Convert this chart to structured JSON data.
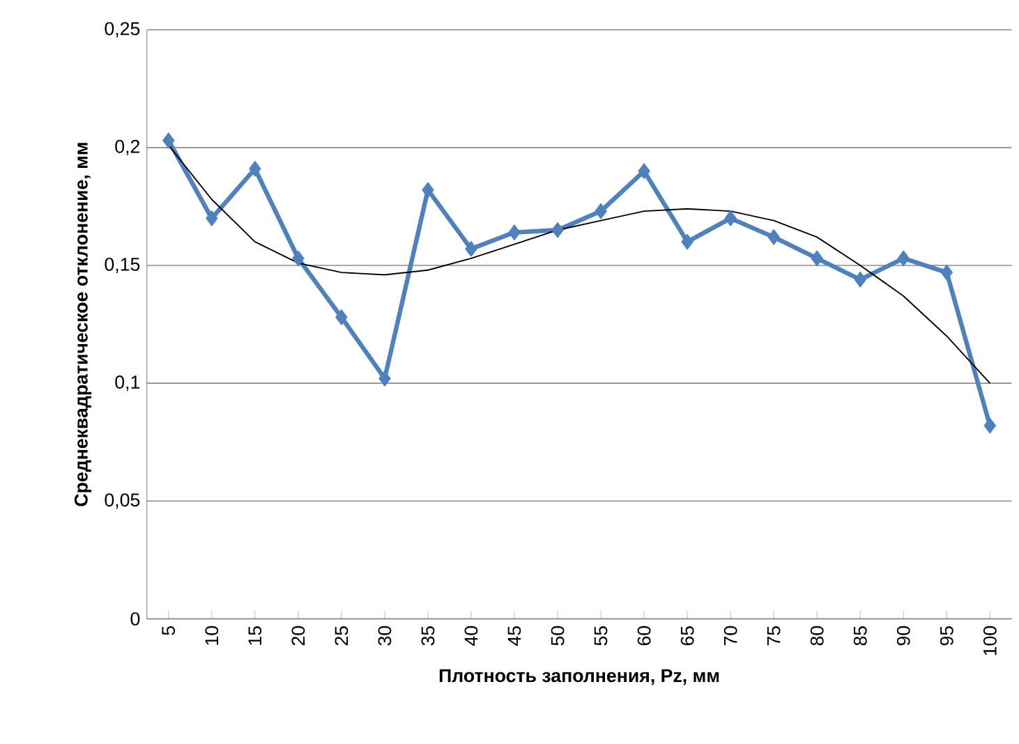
{
  "chart_data": {
    "type": "line",
    "xlabel": "Плотность заполнения, Pz, мм",
    "ylabel": "Среднеквадратическое отклонение, мм",
    "categories": [
      "5",
      "10",
      "15",
      "20",
      "25",
      "30",
      "35",
      "40",
      "45",
      "50",
      "55",
      "60",
      "65",
      "70",
      "75",
      "80",
      "85",
      "90",
      "95",
      "100"
    ],
    "series": [
      {
        "color": "#4f81bd",
        "marker": "diamond",
        "values": [
          0.203,
          0.17,
          0.191,
          0.153,
          0.128,
          0.102,
          0.182,
          0.157,
          0.164,
          0.165,
          0.173,
          0.19,
          0.16,
          0.17,
          0.162,
          0.153,
          0.144,
          0.153,
          0.147,
          0.082
        ]
      },
      {
        "color": "#000000",
        "marker": "none",
        "values": [
          0.201,
          0.178,
          0.16,
          0.151,
          0.147,
          0.146,
          0.148,
          0.153,
          0.159,
          0.165,
          0.169,
          0.173,
          0.174,
          0.173,
          0.169,
          0.162,
          0.15,
          0.137,
          0.12,
          0.1
        ]
      }
    ],
    "ylim": [
      0,
      0.25
    ],
    "yticks": [
      0,
      {
        "value": 0.05,
        "label": "0,05"
      },
      {
        "value": 0.1,
        "label": "0,1"
      },
      {
        "value": 0.15,
        "label": "0,15"
      },
      {
        "value": 0.2,
        "label": "0,2"
      },
      {
        "value": 0.25,
        "label": "0,25"
      }
    ],
    "grid": "y"
  }
}
